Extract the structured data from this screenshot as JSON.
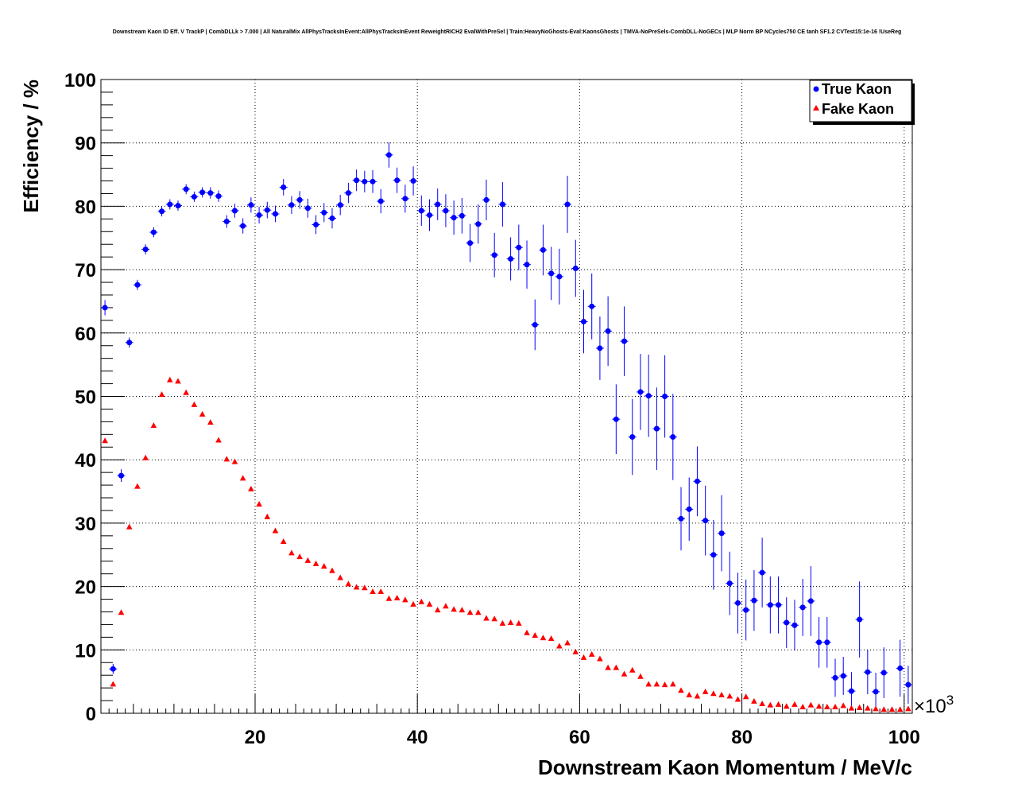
{
  "chart_data": {
    "type": "scatter",
    "title": "Downstream Kaon ID Eff. V TrackP | CombDLLk > 7.000 | All NaturalMix AllPhysTracksInEvent:AllPhysTracksInEvent ReweightRICH2 EvalWithPreSel | Train:HeavyNoGhosts-Eval:KaonsGhosts | TMVA-NoPreSels-CombDLL-NoGECs | MLP Norm BP NCycles750 CE tanh SF1.2 CVTest15:1e-16 !UseReg",
    "xlabel": "Downstream Kaon Momentum / MeV/c",
    "ylabel": "Efficiency / %",
    "x_multiplier_label": "×10",
    "x_multiplier_exp": "3",
    "xlim": [
      1,
      101
    ],
    "ylim": [
      0,
      100
    ],
    "x_ticks": [
      20,
      40,
      60,
      80,
      100
    ],
    "x_tick_labels": [
      "20",
      "40",
      "60",
      "80",
      "100"
    ],
    "y_ticks": [
      0,
      10,
      20,
      30,
      40,
      50,
      60,
      70,
      80,
      90,
      100
    ],
    "y_tick_labels": [
      "0",
      "10",
      "20",
      "30",
      "40",
      "50",
      "60",
      "70",
      "80",
      "90",
      "100"
    ],
    "grid": true,
    "legend_position": "top-right",
    "colors": {
      "true_kaon": "#0000ff",
      "fake_kaon": "#ff0000"
    },
    "x": [
      1.5,
      2.5,
      3.5,
      4.5,
      5.5,
      6.5,
      7.5,
      8.5,
      9.5,
      10.5,
      11.5,
      12.5,
      13.5,
      14.5,
      15.5,
      16.5,
      17.5,
      18.5,
      19.5,
      20.5,
      21.5,
      22.5,
      23.5,
      24.5,
      25.5,
      26.5,
      27.5,
      28.5,
      29.5,
      30.5,
      31.5,
      32.5,
      33.5,
      34.5,
      35.5,
      36.5,
      37.5,
      38.5,
      39.5,
      40.5,
      41.5,
      42.5,
      43.5,
      44.5,
      45.5,
      46.5,
      47.5,
      48.5,
      49.5,
      50.5,
      51.5,
      52.5,
      53.5,
      54.5,
      55.5,
      56.5,
      57.5,
      58.5,
      59.5,
      60.5,
      61.5,
      62.5,
      63.5,
      64.5,
      65.5,
      66.5,
      67.5,
      68.5,
      69.5,
      70.5,
      71.5,
      72.5,
      73.5,
      74.5,
      75.5,
      76.5,
      77.5,
      78.5,
      79.5,
      80.5,
      81.5,
      82.5,
      83.5,
      84.5,
      85.5,
      86.5,
      87.5,
      88.5,
      89.5,
      90.5,
      91.5,
      92.5,
      93.5,
      94.5,
      95.5,
      96.5,
      97.5,
      98.5,
      99.5,
      100.5
    ],
    "series": [
      {
        "name": "True Kaon",
        "marker": "circle",
        "values": [
          64.0,
          7.0,
          37.5,
          58.5,
          67.6,
          73.2,
          75.9,
          79.2,
          80.3,
          80.1,
          82.7,
          81.5,
          82.2,
          82.1,
          81.6,
          77.6,
          79.3,
          76.9,
          80.2,
          78.6,
          79.4,
          78.8,
          83.0,
          80.2,
          81.0,
          79.7,
          77.1,
          79.0,
          78.1,
          80.2,
          82.1,
          84.1,
          83.9,
          83.9,
          80.8,
          88.1,
          84.1,
          81.2,
          84.0,
          79.3,
          78.6,
          80.3,
          79.3,
          78.2,
          78.5,
          74.2,
          77.2,
          81.0,
          72.3,
          80.3,
          71.7,
          73.5,
          70.8,
          61.3,
          73.1,
          69.4,
          68.9,
          80.3,
          70.2,
          61.8,
          64.2,
          57.6,
          60.3,
          46.4,
          58.7,
          43.6,
          50.7,
          50.1,
          44.9,
          50.0,
          43.6,
          30.7,
          32.2,
          36.6,
          30.4,
          25.0,
          28.4,
          20.5,
          17.4,
          16.3,
          17.8,
          22.2,
          17.1,
          17.1,
          14.3,
          13.9,
          16.7,
          17.7,
          11.2,
          11.2,
          5.6,
          5.9,
          3.5,
          14.8,
          6.5,
          3.4,
          6.4,
          null,
          7.1,
          4.5
        ],
        "errors": [
          1.2,
          0.8,
          1.0,
          0.8,
          0.8,
          0.8,
          0.8,
          0.8,
          0.8,
          0.8,
          0.8,
          0.8,
          0.8,
          0.9,
          0.9,
          1.0,
          1.1,
          1.2,
          1.2,
          1.3,
          1.3,
          1.3,
          1.3,
          1.4,
          1.4,
          1.5,
          1.5,
          1.5,
          1.6,
          1.6,
          1.6,
          1.7,
          1.7,
          1.8,
          1.9,
          2.0,
          2.0,
          2.2,
          2.3,
          2.4,
          2.5,
          2.5,
          2.6,
          2.7,
          2.8,
          3.0,
          3.1,
          3.2,
          3.5,
          3.5,
          3.4,
          3.6,
          3.8,
          4.0,
          4.0,
          4.2,
          4.4,
          4.5,
          4.5,
          5.0,
          5.2,
          5.0,
          5.5,
          5.5,
          5.5,
          6.0,
          6.0,
          6.5,
          6.5,
          6.5,
          6.8,
          5.0,
          5.0,
          5.5,
          5.5,
          5.5,
          6.0,
          5.0,
          4.8,
          4.8,
          4.8,
          5.5,
          4.5,
          4.5,
          4.0,
          4.0,
          4.5,
          5.5,
          4.0,
          4.0,
          3.0,
          3.0,
          3.0,
          6.0,
          3.5,
          3.0,
          4.0,
          null,
          4.5,
          3.0
        ]
      },
      {
        "name": "Fake Kaon",
        "marker": "triangle",
        "values": [
          43.0,
          4.6,
          15.9,
          29.4,
          35.8,
          40.3,
          45.4,
          50.3,
          52.6,
          52.4,
          50.6,
          48.7,
          47.2,
          45.9,
          43.1,
          40.1,
          39.7,
          37.1,
          35.4,
          33.0,
          31.0,
          28.8,
          27.1,
          25.3,
          24.7,
          24.1,
          23.6,
          23.2,
          22.5,
          21.4,
          20.4,
          19.9,
          19.8,
          19.2,
          19.2,
          18.1,
          18.2,
          17.9,
          17.2,
          17.6,
          17.2,
          16.3,
          16.9,
          16.4,
          16.3,
          15.9,
          15.9,
          15.0,
          14.9,
          14.2,
          14.3,
          14.2,
          12.7,
          12.3,
          11.9,
          11.8,
          10.6,
          11.1,
          9.7,
          8.8,
          9.3,
          8.6,
          7.2,
          7.2,
          6.2,
          6.8,
          5.8,
          4.6,
          4.6,
          4.5,
          4.6,
          3.6,
          2.9,
          2.7,
          3.4,
          3.1,
          2.9,
          2.7,
          2.2,
          2.6,
          1.9,
          1.5,
          1.3,
          1.4,
          1.1,
          1.4,
          1.0,
          1.3,
          1.1,
          1.0,
          1.0,
          1.2,
          0.8,
          0.9,
          0.8,
          0.7,
          0.6,
          0.6,
          0.6,
          0.7
        ]
      }
    ]
  }
}
